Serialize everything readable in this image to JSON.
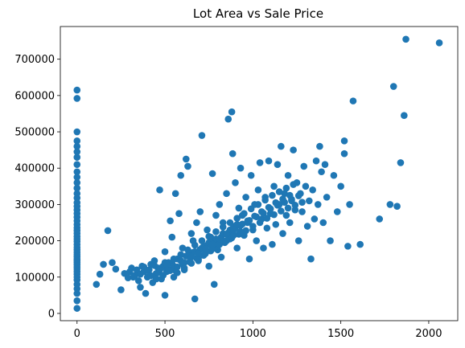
{
  "chart_data": {
    "type": "scatter",
    "title": "Lot Area vs Sale Price",
    "xlabel": "",
    "ylabel": "",
    "xlim": [
      -95,
      2165
    ],
    "ylim": [
      -20000,
      790000
    ],
    "xticks": [
      0,
      500,
      1000,
      1500,
      2000
    ],
    "yticks": [
      0,
      100000,
      200000,
      300000,
      400000,
      500000,
      600000,
      700000
    ],
    "grid": false,
    "legend": "none",
    "marker_color": "#1f77b4",
    "series": [
      {
        "points": [
          [
            0,
            14000
          ],
          [
            0,
            35000
          ],
          [
            0,
            55000
          ],
          [
            0,
            68000
          ],
          [
            0,
            80000
          ],
          [
            0,
            92000
          ],
          [
            0,
            100000
          ],
          [
            0,
            108000
          ],
          [
            0,
            115000
          ],
          [
            0,
            122000
          ],
          [
            0,
            128000
          ],
          [
            0,
            134000
          ],
          [
            0,
            140000
          ],
          [
            0,
            145000
          ],
          [
            0,
            150000
          ],
          [
            0,
            156000
          ],
          [
            0,
            162000
          ],
          [
            0,
            168000
          ],
          [
            0,
            175000
          ],
          [
            0,
            182000
          ],
          [
            0,
            190000
          ],
          [
            0,
            198000
          ],
          [
            0,
            205000
          ],
          [
            0,
            212000
          ],
          [
            0,
            220000
          ],
          [
            0,
            228000
          ],
          [
            0,
            236000
          ],
          [
            0,
            245000
          ],
          [
            0,
            255000
          ],
          [
            0,
            265000
          ],
          [
            0,
            275000
          ],
          [
            0,
            285000
          ],
          [
            0,
            295000
          ],
          [
            0,
            305000
          ],
          [
            0,
            318000
          ],
          [
            0,
            330000
          ],
          [
            0,
            345000
          ],
          [
            0,
            360000
          ],
          [
            0,
            375000
          ],
          [
            0,
            390000
          ],
          [
            0,
            410000
          ],
          [
            0,
            430000
          ],
          [
            0,
            445000
          ],
          [
            0,
            460000
          ],
          [
            0,
            475000
          ],
          [
            0,
            500000
          ],
          [
            0,
            592000
          ],
          [
            0,
            615000
          ],
          [
            110,
            80000
          ],
          [
            130,
            108000
          ],
          [
            150,
            135000
          ],
          [
            175,
            228000
          ],
          [
            200,
            140000
          ],
          [
            220,
            122000
          ],
          [
            250,
            65000
          ],
          [
            270,
            110000
          ],
          [
            290,
            98000
          ],
          [
            310,
            125000
          ],
          [
            330,
            105000
          ],
          [
            350,
            90000
          ],
          [
            360,
            72000
          ],
          [
            370,
            130000
          ],
          [
            380,
            115000
          ],
          [
            390,
            55000
          ],
          [
            400,
            100000
          ],
          [
            410,
            120000
          ],
          [
            420,
            135000
          ],
          [
            430,
            85000
          ],
          [
            440,
            145000
          ],
          [
            450,
            110000
          ],
          [
            460,
            125000
          ],
          [
            470,
            340000
          ],
          [
            480,
            95000
          ],
          [
            490,
            130000
          ],
          [
            500,
            50000
          ],
          [
            500,
            170000
          ],
          [
            510,
            115000
          ],
          [
            520,
            140000
          ],
          [
            530,
            255000
          ],
          [
            540,
            210000
          ],
          [
            550,
            100000
          ],
          [
            560,
            330000
          ],
          [
            570,
            150000
          ],
          [
            580,
            275000
          ],
          [
            590,
            380000
          ],
          [
            600,
            180000
          ],
          [
            610,
            120000
          ],
          [
            620,
            425000
          ],
          [
            630,
            405000
          ],
          [
            640,
            160000
          ],
          [
            650,
            220000
          ],
          [
            660,
            200000
          ],
          [
            670,
            40000
          ],
          [
            680,
            250000
          ],
          [
            690,
            145000
          ],
          [
            700,
            280000
          ],
          [
            710,
            490000
          ],
          [
            720,
            185000
          ],
          [
            730,
            165000
          ],
          [
            740,
            230000
          ],
          [
            750,
            130000
          ],
          [
            760,
            210000
          ],
          [
            770,
            385000
          ],
          [
            780,
            80000
          ],
          [
            790,
            270000
          ],
          [
            800,
            175000
          ],
          [
            810,
            300000
          ],
          [
            820,
            155000
          ],
          [
            830,
            250000
          ],
          [
            840,
            195000
          ],
          [
            850,
            330000
          ],
          [
            860,
            535000
          ],
          [
            870,
            205000
          ],
          [
            880,
            555000
          ],
          [
            885,
            440000
          ],
          [
            890,
            240000
          ],
          [
            900,
            360000
          ],
          [
            910,
            180000
          ],
          [
            920,
            290000
          ],
          [
            930,
            400000
          ],
          [
            940,
            270000
          ],
          [
            950,
            215000
          ],
          [
            960,
            320000
          ],
          [
            970,
            250000
          ],
          [
            980,
            150000
          ],
          [
            990,
            380000
          ],
          [
            1000,
            230000
          ],
          [
            1010,
            300000
          ],
          [
            1020,
            200000
          ],
          [
            1030,
            340000
          ],
          [
            1040,
            415000
          ],
          [
            1050,
            260000
          ],
          [
            1060,
            180000
          ],
          [
            1070,
            320000
          ],
          [
            1080,
            235000
          ],
          [
            1090,
            420000
          ],
          [
            1100,
            275000
          ],
          [
            1110,
            190000
          ],
          [
            1120,
            350000
          ],
          [
            1130,
            245000
          ],
          [
            1140,
            410000
          ],
          [
            1150,
            300000
          ],
          [
            1160,
            460000
          ],
          [
            1170,
            220000
          ],
          [
            1180,
            330000
          ],
          [
            1190,
            270000
          ],
          [
            1200,
            380000
          ],
          [
            1210,
            250000
          ],
          [
            1220,
            310000
          ],
          [
            1230,
            450000
          ],
          [
            1240,
            285000
          ],
          [
            1250,
            360000
          ],
          [
            1260,
            200000
          ],
          [
            1270,
            330000
          ],
          [
            1280,
            280000
          ],
          [
            1290,
            405000
          ],
          [
            1300,
            350000
          ],
          [
            1310,
            240000
          ],
          [
            1320,
            310000
          ],
          [
            1330,
            150000
          ],
          [
            1340,
            340000
          ],
          [
            1350,
            260000
          ],
          [
            1360,
            420000
          ],
          [
            1370,
            300000
          ],
          [
            1380,
            460000
          ],
          [
            1390,
            390000
          ],
          [
            1400,
            250000
          ],
          [
            1410,
            410000
          ],
          [
            1420,
            320000
          ],
          [
            1440,
            200000
          ],
          [
            1460,
            380000
          ],
          [
            1480,
            280000
          ],
          [
            1500,
            350000
          ],
          [
            1520,
            440000
          ],
          [
            1520,
            475000
          ],
          [
            1540,
            185000
          ],
          [
            1550,
            300000
          ],
          [
            1570,
            585000
          ],
          [
            1610,
            190000
          ],
          [
            1720,
            260000
          ],
          [
            1780,
            300000
          ],
          [
            1800,
            625000
          ],
          [
            1820,
            295000
          ],
          [
            1840,
            415000
          ],
          [
            1860,
            545000
          ],
          [
            1870,
            755000
          ],
          [
            2060,
            745000
          ],
          [
            300,
            115000
          ],
          [
            320,
            100000
          ],
          [
            340,
            120000
          ],
          [
            360,
            108000
          ],
          [
            380,
            128000
          ],
          [
            400,
            118000
          ],
          [
            420,
            104000
          ],
          [
            440,
            132000
          ],
          [
            460,
            112000
          ],
          [
            480,
            126000
          ],
          [
            500,
            140000
          ],
          [
            520,
            122000
          ],
          [
            540,
            138000
          ],
          [
            560,
            118000
          ],
          [
            580,
            150000
          ],
          [
            600,
            136000
          ],
          [
            620,
            158000
          ],
          [
            640,
            142000
          ],
          [
            660,
            168000
          ],
          [
            680,
            152000
          ],
          [
            700,
            176000
          ],
          [
            720,
            160000
          ],
          [
            740,
            188000
          ],
          [
            760,
            172000
          ],
          [
            780,
            198000
          ],
          [
            800,
            185000
          ],
          [
            820,
            210000
          ],
          [
            840,
            196000
          ],
          [
            860,
            222000
          ],
          [
            880,
            208000
          ],
          [
            900,
            234000
          ],
          [
            920,
            218000
          ],
          [
            940,
            246000
          ],
          [
            960,
            228000
          ],
          [
            980,
            256000
          ],
          [
            1000,
            240000
          ],
          [
            1020,
            266000
          ],
          [
            1040,
            250000
          ],
          [
            1060,
            276000
          ],
          [
            1080,
            262000
          ],
          [
            1100,
            288000
          ],
          [
            1120,
            272000
          ],
          [
            1140,
            298000
          ],
          [
            1160,
            282000
          ],
          [
            1180,
            306000
          ],
          [
            1200,
            290000
          ],
          [
            1220,
            314000
          ],
          [
            1240,
            298000
          ],
          [
            1260,
            324000
          ],
          [
            1280,
            306000
          ],
          [
            550,
            130000
          ],
          [
            570,
            112000
          ],
          [
            590,
            145000
          ],
          [
            610,
            125000
          ],
          [
            630,
            160000
          ],
          [
            650,
            138000
          ],
          [
            670,
            170000
          ],
          [
            690,
            150000
          ],
          [
            710,
            180000
          ],
          [
            730,
            165000
          ],
          [
            750,
            195000
          ],
          [
            770,
            178000
          ],
          [
            790,
            205000
          ],
          [
            810,
            190000
          ],
          [
            830,
            220000
          ],
          [
            850,
            200000
          ],
          [
            870,
            230000
          ],
          [
            890,
            215000
          ],
          [
            910,
            245000
          ],
          [
            930,
            225000
          ],
          [
            450,
            95000
          ],
          [
            470,
            120000
          ],
          [
            490,
            105000
          ],
          [
            510,
            135000
          ],
          [
            530,
            118000
          ],
          [
            550,
            150000
          ],
          [
            570,
            128000
          ],
          [
            590,
            162000
          ],
          [
            610,
            140000
          ],
          [
            630,
            175000
          ],
          [
            650,
            155000
          ],
          [
            670,
            188000
          ],
          [
            690,
            165000
          ],
          [
            710,
            200000
          ],
          [
            730,
            178000
          ],
          [
            750,
            212000
          ],
          [
            770,
            190000
          ],
          [
            790,
            225000
          ],
          [
            810,
            205000
          ],
          [
            830,
            238000
          ],
          [
            850,
            218000
          ],
          [
            870,
            250000
          ],
          [
            890,
            230000
          ],
          [
            910,
            262000
          ],
          [
            930,
            242000
          ],
          [
            950,
            275000
          ],
          [
            970,
            255000
          ],
          [
            990,
            288000
          ],
          [
            1010,
            268000
          ],
          [
            1030,
            300000
          ],
          [
            1050,
            280000
          ],
          [
            1070,
            312000
          ],
          [
            1090,
            292000
          ],
          [
            1110,
            325000
          ],
          [
            1130,
            305000
          ],
          [
            1150,
            335000
          ],
          [
            1170,
            315000
          ],
          [
            1190,
            345000
          ],
          [
            1210,
            325000
          ],
          [
            1230,
            355000
          ]
        ]
      }
    ]
  }
}
